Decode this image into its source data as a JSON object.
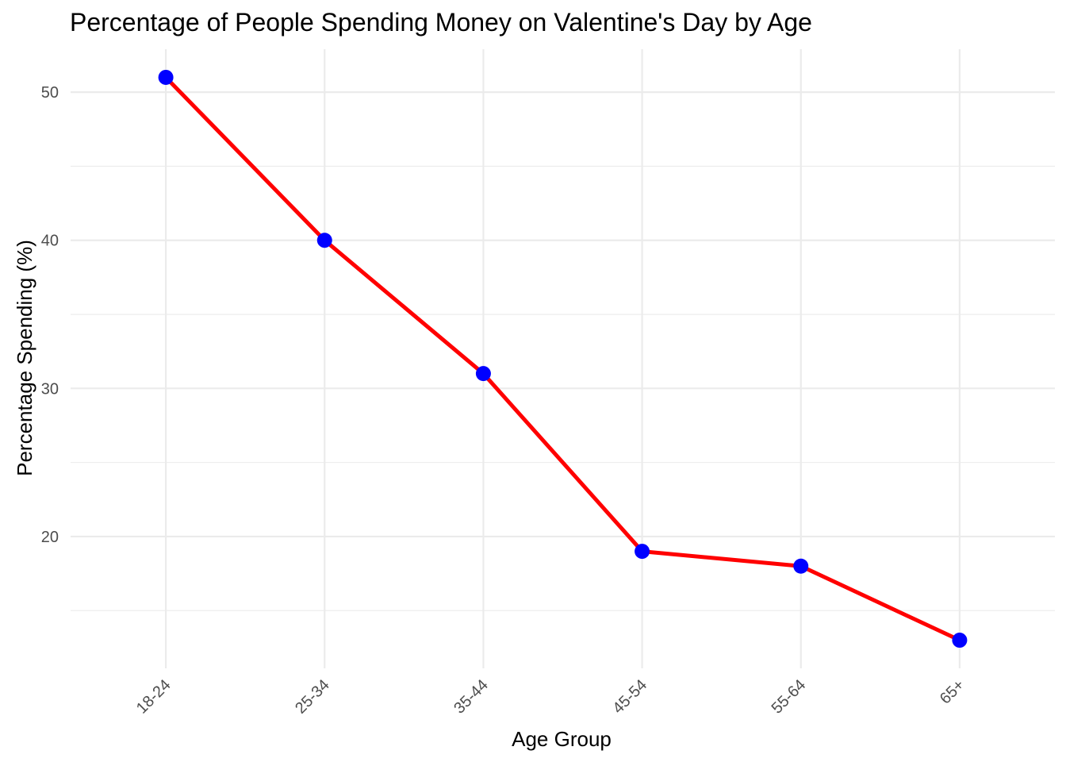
{
  "chart_data": {
    "type": "line",
    "title": "Percentage of People Spending Money on Valentine's Day by Age",
    "xlabel": "Age Group",
    "ylabel": "Percentage Spending (%)",
    "categories": [
      "18-24",
      "25-34",
      "35-44",
      "45-54",
      "55-64",
      "65+"
    ],
    "series": [
      {
        "values": [
          51,
          40,
          31,
          19,
          18,
          13
        ]
      }
    ],
    "ylim": [
      11.1,
      52.9
    ],
    "yticks": [
      20,
      30,
      40,
      50
    ],
    "yticks_minor": [
      15,
      25,
      35,
      45
    ],
    "grid": true,
    "legend": "none",
    "colors": {
      "line": "#ff0000",
      "point": "#0000ff",
      "grid": "#ebebeb",
      "tick_text": "#4d4d4d",
      "text": "#000000",
      "background": "#ffffff"
    }
  }
}
